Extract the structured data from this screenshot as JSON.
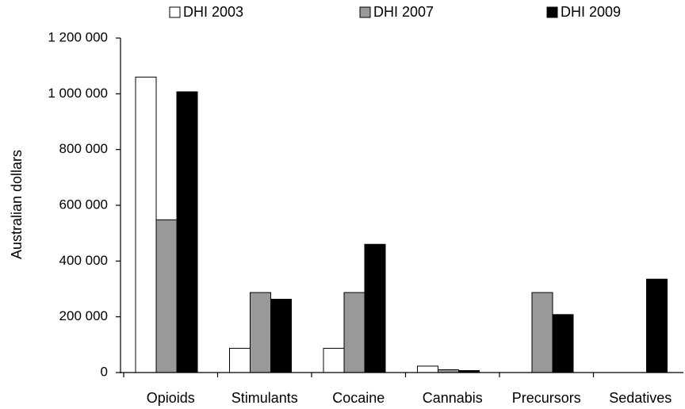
{
  "chart_data": {
    "type": "bar",
    "title": "",
    "xlabel": "",
    "ylabel": "Australian dollars",
    "categories": [
      "Opioids",
      "Stimulants",
      "Cocaine",
      "Cannabis",
      "Precursors",
      "Sedatives"
    ],
    "series": [
      {
        "name": "DHI 2003",
        "color": "#ffffff",
        "values": [
          1060000,
          87000,
          87000,
          23000,
          0,
          0
        ]
      },
      {
        "name": "DHI 2007",
        "color": "#999999",
        "values": [
          548000,
          287000,
          287000,
          10000,
          287000,
          0
        ]
      },
      {
        "name": "DHI 2009",
        "color": "#000000",
        "values": [
          1007000,
          263000,
          460000,
          7000,
          208000,
          335000
        ]
      }
    ],
    "ylim": [
      0,
      1200000
    ],
    "yticks": [
      0,
      200000,
      400000,
      600000,
      800000,
      1000000,
      1200000
    ],
    "ytick_labels": [
      "0",
      "200 000",
      "400 000",
      "600 000",
      "800 000",
      "1 000 000",
      "1 200 000"
    ],
    "grid": false,
    "legend_position": "top"
  }
}
